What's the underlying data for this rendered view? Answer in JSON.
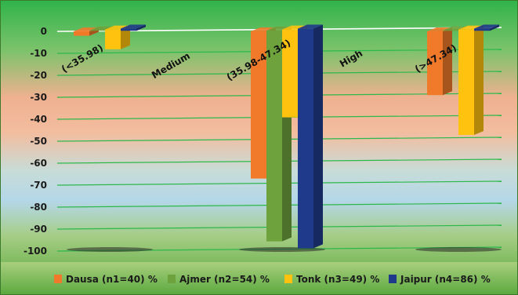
{
  "chart_data": {
    "type": "bar",
    "title": "",
    "xlabel": "",
    "ylabel": "",
    "ylim": [
      -100,
      0
    ],
    "yticks": [
      "0",
      "-10",
      "-20",
      "-30",
      "-40",
      "-50",
      "-60",
      "-70",
      "-80",
      "-90",
      "-100"
    ],
    "categories": [
      "(<35.98)",
      "(35.98-47.34)",
      "(>47.34)"
    ],
    "annotations": [
      "Medium",
      "High"
    ],
    "legend_position": "bottom",
    "series": [
      {
        "name": "Dausa (n1=40) %",
        "color": "#f07a2a",
        "values": [
          -2,
          -67,
          -29
        ]
      },
      {
        "name": "Ajmer (n2=54) %",
        "color": "#6ea23c",
        "values": [
          0,
          -96,
          0
        ]
      },
      {
        "name": "Tonk (n3=49) %",
        "color": "#ffc20e",
        "values": [
          -9,
          -40,
          -48
        ]
      },
      {
        "name": "Jaipur (n4=86) %",
        "color": "#1f3a8a",
        "values": [
          -1,
          -100,
          -1
        ]
      }
    ]
  }
}
